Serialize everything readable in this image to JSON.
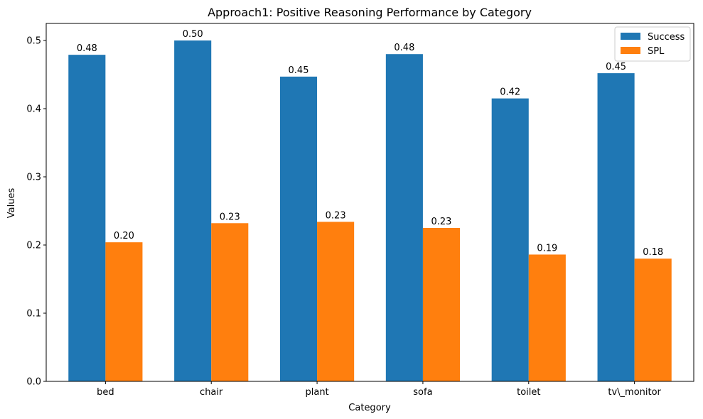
{
  "chart_data": {
    "type": "bar",
    "title": "Approach1: Positive Reasoning Performance by Category",
    "xlabel": "Category",
    "ylabel": "Values",
    "categories": [
      "bed",
      "chair",
      "plant",
      "sofa",
      "toilet",
      "tv\\_monitor"
    ],
    "series": [
      {
        "name": "Success",
        "color": "#1f77b4",
        "values": [
          0.479,
          0.5,
          0.447,
          0.48,
          0.415,
          0.452
        ],
        "labels": [
          "0.48",
          "0.50",
          "0.45",
          "0.48",
          "0.42",
          "0.45"
        ]
      },
      {
        "name": "SPL",
        "color": "#ff7f0e",
        "values": [
          0.204,
          0.232,
          0.234,
          0.225,
          0.186,
          0.18
        ],
        "labels": [
          "0.20",
          "0.23",
          "0.23",
          "0.23",
          "0.19",
          "0.18"
        ]
      }
    ],
    "ylim": [
      0,
      0.525
    ],
    "yticks": [
      0.0,
      0.1,
      0.2,
      0.3,
      0.4,
      0.5
    ],
    "ytick_labels": [
      "0.0",
      "0.1",
      "0.2",
      "0.3",
      "0.4",
      "0.5"
    ],
    "legend_position": "top-right",
    "grid": false
  }
}
